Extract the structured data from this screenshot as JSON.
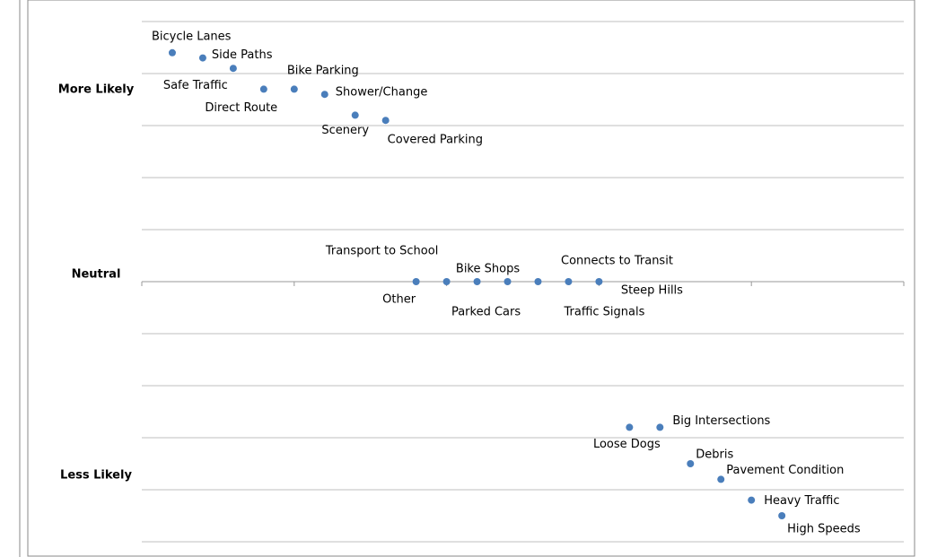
{
  "chart_data": {
    "type": "scatter",
    "row_labels": [
      "More Likely",
      "Neutral",
      "Less Likely"
    ],
    "xlim": [
      0,
      25
    ],
    "xticks": [
      0,
      5,
      10,
      15,
      20,
      25
    ],
    "ylim": [
      -5,
      5
    ],
    "yticks": [
      -5,
      -4,
      -3,
      -2,
      -1,
      0,
      1,
      2,
      3,
      4,
      5
    ],
    "grid": true,
    "series": [
      {
        "color": "#4a7ebb",
        "x": [
          1,
          2,
          3,
          4,
          5,
          6,
          7,
          8,
          9,
          10,
          11,
          12,
          13,
          14,
          15,
          16,
          17,
          18,
          19,
          20,
          21
        ],
        "values": [
          4.4,
          4.3,
          4.1,
          3.7,
          3.7,
          3.6,
          3.2,
          3.1,
          0,
          0,
          0,
          0,
          0,
          0,
          0,
          -2.8,
          -2.8,
          -3.5,
          -3.8,
          -4.2,
          -4.5
        ],
        "labels": [
          "Bicycle Lanes",
          "Side Paths",
          "Bike Parking",
          "Safe Traffic",
          "Direct Route",
          "Shower/Change",
          "Scenery",
          "Covered Parking",
          "Other",
          "Transport to School",
          "Parked Cars",
          "Bike Shops",
          "Connects to Transit",
          "Traffic Signals",
          "Steep Hills",
          "Loose Dogs",
          "Big Intersections",
          "Debris",
          "Pavement Condition",
          "Heavy Traffic",
          "High Speeds"
        ]
      }
    ]
  }
}
